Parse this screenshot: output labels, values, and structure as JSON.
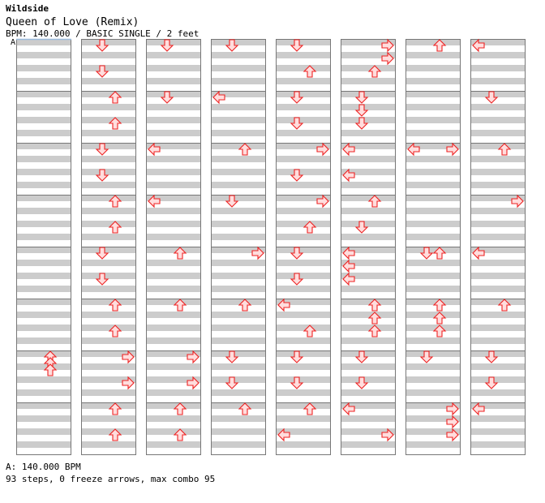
{
  "header": {
    "series": "Wildside",
    "song_title": "Queen of Love (Remix)",
    "meta": "BPM: 140.000 / BASIC SINGLE / 2 feet"
  },
  "marker_label": "A",
  "footer": {
    "bpm_line": "A: 140.000 BPM",
    "stats_line": "93 steps, 0 freeze arrows, max combo 95"
  },
  "colors": {
    "stripe": "#cccccc",
    "border": "#777777",
    "arrow_fill": "#ffdddd",
    "arrow_stroke": "#ee2222",
    "marker_line": "#99bbdd"
  },
  "chart_data": {
    "type": "step-chart",
    "bpm": 140.0,
    "difficulty": "BASIC",
    "style": "SINGLE",
    "feet": 2,
    "total_steps": 93,
    "freeze_arrows": 0,
    "max_combo": 95,
    "columns": 8,
    "measures_per_column": 8,
    "lanes": [
      "left",
      "down",
      "up",
      "right"
    ],
    "beat_unit": "sixteenth-note offset within measure (0-15)",
    "notes": [
      {
        "c": 0,
        "m": 6,
        "beat": 0,
        "lane": "up"
      },
      {
        "c": 0,
        "m": 6,
        "beat": 2,
        "lane": "up"
      },
      {
        "c": 0,
        "m": 6,
        "beat": 4,
        "lane": "up"
      },
      {
        "c": 1,
        "m": 0,
        "beat": 0,
        "lane": "down"
      },
      {
        "c": 1,
        "m": 0,
        "beat": 8,
        "lane": "down"
      },
      {
        "c": 1,
        "m": 1,
        "beat": 0,
        "lane": "up"
      },
      {
        "c": 1,
        "m": 1,
        "beat": 8,
        "lane": "up"
      },
      {
        "c": 1,
        "m": 2,
        "beat": 0,
        "lane": "down"
      },
      {
        "c": 1,
        "m": 2,
        "beat": 8,
        "lane": "down"
      },
      {
        "c": 1,
        "m": 3,
        "beat": 0,
        "lane": "up"
      },
      {
        "c": 1,
        "m": 3,
        "beat": 8,
        "lane": "up"
      },
      {
        "c": 1,
        "m": 4,
        "beat": 0,
        "lane": "down"
      },
      {
        "c": 1,
        "m": 4,
        "beat": 8,
        "lane": "down"
      },
      {
        "c": 1,
        "m": 5,
        "beat": 0,
        "lane": "up"
      },
      {
        "c": 1,
        "m": 5,
        "beat": 8,
        "lane": "up"
      },
      {
        "c": 1,
        "m": 6,
        "beat": 0,
        "lane": "right"
      },
      {
        "c": 1,
        "m": 6,
        "beat": 8,
        "lane": "right"
      },
      {
        "c": 1,
        "m": 7,
        "beat": 0,
        "lane": "up"
      },
      {
        "c": 1,
        "m": 7,
        "beat": 8,
        "lane": "up"
      },
      {
        "c": 2,
        "m": 0,
        "beat": 0,
        "lane": "down"
      },
      {
        "c": 2,
        "m": 1,
        "beat": 0,
        "lane": "down"
      },
      {
        "c": 2,
        "m": 2,
        "beat": 0,
        "lane": "left"
      },
      {
        "c": 2,
        "m": 3,
        "beat": 0,
        "lane": "left"
      },
      {
        "c": 2,
        "m": 4,
        "beat": 0,
        "lane": "up"
      },
      {
        "c": 2,
        "m": 5,
        "beat": 0,
        "lane": "up"
      },
      {
        "c": 2,
        "m": 6,
        "beat": 0,
        "lane": "right"
      },
      {
        "c": 2,
        "m": 6,
        "beat": 8,
        "lane": "right"
      },
      {
        "c": 2,
        "m": 7,
        "beat": 0,
        "lane": "up"
      },
      {
        "c": 2,
        "m": 7,
        "beat": 8,
        "lane": "up"
      },
      {
        "c": 3,
        "m": 0,
        "beat": 0,
        "lane": "down"
      },
      {
        "c": 3,
        "m": 1,
        "beat": 0,
        "lane": "left"
      },
      {
        "c": 3,
        "m": 2,
        "beat": 0,
        "lane": "up"
      },
      {
        "c": 3,
        "m": 3,
        "beat": 0,
        "lane": "down"
      },
      {
        "c": 3,
        "m": 4,
        "beat": 0,
        "lane": "right"
      },
      {
        "c": 3,
        "m": 5,
        "beat": 0,
        "lane": "up"
      },
      {
        "c": 3,
        "m": 6,
        "beat": 0,
        "lane": "down"
      },
      {
        "c": 3,
        "m": 6,
        "beat": 8,
        "lane": "down"
      },
      {
        "c": 3,
        "m": 7,
        "beat": 0,
        "lane": "up"
      },
      {
        "c": 4,
        "m": 0,
        "beat": 0,
        "lane": "down"
      },
      {
        "c": 4,
        "m": 0,
        "beat": 8,
        "lane": "up"
      },
      {
        "c": 4,
        "m": 1,
        "beat": 0,
        "lane": "down"
      },
      {
        "c": 4,
        "m": 1,
        "beat": 8,
        "lane": "down"
      },
      {
        "c": 4,
        "m": 2,
        "beat": 0,
        "lane": "right"
      },
      {
        "c": 4,
        "m": 2,
        "beat": 8,
        "lane": "down"
      },
      {
        "c": 4,
        "m": 3,
        "beat": 0,
        "lane": "right"
      },
      {
        "c": 4,
        "m": 3,
        "beat": 8,
        "lane": "up"
      },
      {
        "c": 4,
        "m": 4,
        "beat": 0,
        "lane": "down"
      },
      {
        "c": 4,
        "m": 4,
        "beat": 8,
        "lane": "down"
      },
      {
        "c": 4,
        "m": 5,
        "beat": 0,
        "lane": "left"
      },
      {
        "c": 4,
        "m": 5,
        "beat": 8,
        "lane": "up"
      },
      {
        "c": 4,
        "m": 6,
        "beat": 0,
        "lane": "down"
      },
      {
        "c": 4,
        "m": 6,
        "beat": 8,
        "lane": "down"
      },
      {
        "c": 4,
        "m": 7,
        "beat": 0,
        "lane": "up"
      },
      {
        "c": 4,
        "m": 7,
        "beat": 8,
        "lane": "left"
      },
      {
        "c": 5,
        "m": 0,
        "beat": 0,
        "lane": "right"
      },
      {
        "c": 5,
        "m": 0,
        "beat": 4,
        "lane": "right"
      },
      {
        "c": 5,
        "m": 0,
        "beat": 8,
        "lane": "up"
      },
      {
        "c": 5,
        "m": 1,
        "beat": 0,
        "lane": "down"
      },
      {
        "c": 5,
        "m": 1,
        "beat": 4,
        "lane": "down"
      },
      {
        "c": 5,
        "m": 1,
        "beat": 8,
        "lane": "down"
      },
      {
        "c": 5,
        "m": 2,
        "beat": 0,
        "lane": "left"
      },
      {
        "c": 5,
        "m": 2,
        "beat": 8,
        "lane": "left"
      },
      {
        "c": 5,
        "m": 3,
        "beat": 0,
        "lane": "up"
      },
      {
        "c": 5,
        "m": 3,
        "beat": 8,
        "lane": "down"
      },
      {
        "c": 5,
        "m": 4,
        "beat": 0,
        "lane": "left"
      },
      {
        "c": 5,
        "m": 4,
        "beat": 4,
        "lane": "left"
      },
      {
        "c": 5,
        "m": 4,
        "beat": 8,
        "lane": "left"
      },
      {
        "c": 5,
        "m": 5,
        "beat": 0,
        "lane": "up"
      },
      {
        "c": 5,
        "m": 5,
        "beat": 4,
        "lane": "up"
      },
      {
        "c": 5,
        "m": 5,
        "beat": 8,
        "lane": "up"
      },
      {
        "c": 5,
        "m": 6,
        "beat": 0,
        "lane": "down"
      },
      {
        "c": 5,
        "m": 6,
        "beat": 8,
        "lane": "down"
      },
      {
        "c": 5,
        "m": 7,
        "beat": 0,
        "lane": "left"
      },
      {
        "c": 5,
        "m": 7,
        "beat": 8,
        "lane": "right"
      },
      {
        "c": 6,
        "m": 0,
        "beat": 0,
        "lane": "up"
      },
      {
        "c": 6,
        "m": 2,
        "beat": 0,
        "lane": "left"
      },
      {
        "c": 6,
        "m": 2,
        "beat": 0,
        "lane": "right"
      },
      {
        "c": 6,
        "m": 4,
        "beat": 0,
        "lane": "down"
      },
      {
        "c": 6,
        "m": 4,
        "beat": 0,
        "lane": "up"
      },
      {
        "c": 6,
        "m": 5,
        "beat": 0,
        "lane": "up"
      },
      {
        "c": 6,
        "m": 5,
        "beat": 4,
        "lane": "up"
      },
      {
        "c": 6,
        "m": 5,
        "beat": 8,
        "lane": "up"
      },
      {
        "c": 6,
        "m": 6,
        "beat": 0,
        "lane": "down"
      },
      {
        "c": 6,
        "m": 7,
        "beat": 0,
        "lane": "right"
      },
      {
        "c": 6,
        "m": 7,
        "beat": 4,
        "lane": "right"
      },
      {
        "c": 6,
        "m": 7,
        "beat": 8,
        "lane": "right"
      },
      {
        "c": 7,
        "m": 0,
        "beat": 0,
        "lane": "left"
      },
      {
        "c": 7,
        "m": 1,
        "beat": 0,
        "lane": "down"
      },
      {
        "c": 7,
        "m": 2,
        "beat": 0,
        "lane": "up"
      },
      {
        "c": 7,
        "m": 3,
        "beat": 0,
        "lane": "right"
      },
      {
        "c": 7,
        "m": 4,
        "beat": 0,
        "lane": "left"
      },
      {
        "c": 7,
        "m": 5,
        "beat": 0,
        "lane": "up"
      },
      {
        "c": 7,
        "m": 6,
        "beat": 0,
        "lane": "down"
      },
      {
        "c": 7,
        "m": 6,
        "beat": 8,
        "lane": "down"
      },
      {
        "c": 7,
        "m": 7,
        "beat": 0,
        "lane": "left"
      }
    ]
  }
}
